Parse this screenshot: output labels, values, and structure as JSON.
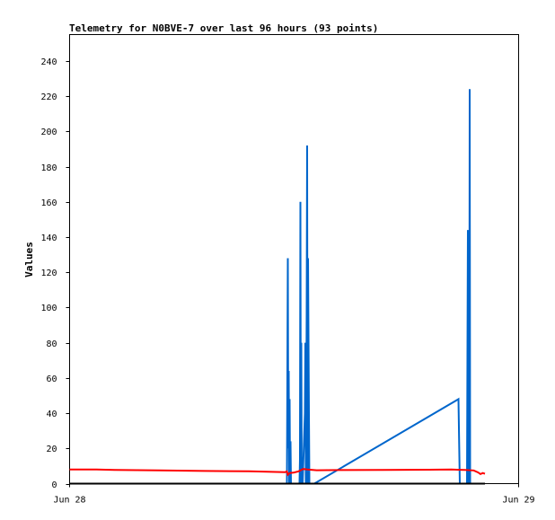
{
  "chart_data": {
    "type": "line",
    "title": "Telemetry for N0BVE-7 over last 96 hours (93 points)",
    "xlabel": "",
    "ylabel": "Values",
    "x_ticks": [
      "Jun 28",
      "Jun 29"
    ],
    "y_ticks": [
      0,
      20,
      40,
      60,
      80,
      100,
      120,
      140,
      160,
      180,
      200,
      220,
      240
    ],
    "xlim": [
      0,
      1
    ],
    "ylim": [
      0,
      255
    ],
    "grid": false,
    "legend": "none",
    "series": [
      {
        "color": "#0066cc",
        "x": [
          0.484,
          0.486,
          0.487,
          0.488,
          0.489,
          0.49,
          0.491,
          0.492,
          0.493,
          0.512,
          0.513,
          0.514,
          0.515,
          0.516,
          0.517,
          0.518,
          0.519,
          0.524,
          0.525,
          0.526,
          0.527,
          0.528,
          0.529,
          0.53,
          0.531,
          0.533,
          0.534,
          0.535,
          0.536,
          0.537,
          0.538,
          0.539,
          0.54,
          0.541,
          0.545,
          0.866,
          0.867,
          0.869,
          0.885,
          0.886,
          0.887,
          0.888,
          0.889,
          0.89,
          0.891,
          0.892,
          0.893,
          0.894
        ],
        "y": [
          0,
          128,
          20,
          64,
          0,
          48,
          0,
          24,
          0,
          0,
          14,
          160,
          0,
          80,
          0,
          10,
          0,
          40,
          80,
          0,
          40,
          97,
          192,
          0,
          128,
          40,
          0,
          0,
          0,
          0,
          0,
          0,
          0,
          0,
          0,
          48,
          32,
          0,
          0,
          72,
          144,
          0,
          112,
          0,
          224,
          0,
          0,
          0
        ]
      },
      {
        "color": "#ff0000",
        "x": [
          0.0,
          0.06,
          0.1,
          0.2,
          0.3,
          0.4,
          0.48,
          0.484,
          0.486,
          0.49,
          0.5,
          0.51,
          0.52,
          0.53,
          0.55,
          0.6,
          0.7,
          0.8,
          0.85,
          0.88,
          0.9,
          0.91,
          0.915,
          0.92,
          0.925
        ],
        "y": [
          8,
          8,
          7.8,
          7.5,
          7.2,
          7,
          6.5,
          7,
          5,
          6,
          6.3,
          7,
          8.3,
          8,
          7.6,
          7.7,
          7.8,
          7.9,
          8,
          7.8,
          7.5,
          6.3,
          5.4,
          6,
          5.6
        ]
      },
      {
        "color": "#000000",
        "x": [
          0.0,
          0.925
        ],
        "y": [
          0,
          0
        ]
      }
    ]
  }
}
